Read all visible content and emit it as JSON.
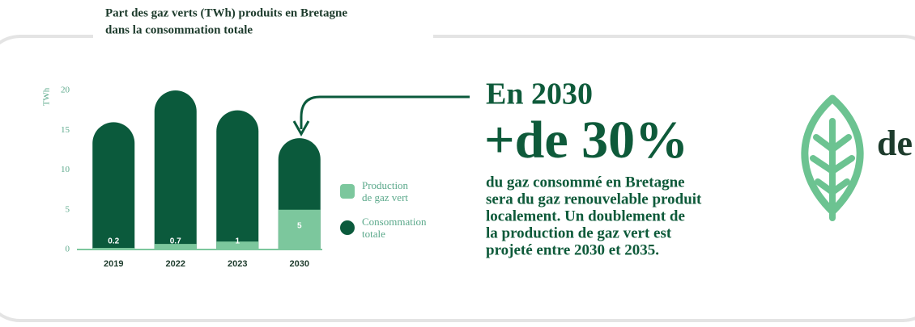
{
  "chart_data": {
    "type": "bar",
    "title": [
      "Part des gaz verts (TWh) produits en Bretagne",
      "dans la consommation totale"
    ],
    "ylabel": "TWh",
    "categories": [
      "2019",
      "2022",
      "2023",
      "2030"
    ],
    "series": [
      {
        "name": "Production de gaz vert",
        "color": "#7cc79d",
        "values": [
          0.2,
          0.7,
          1,
          5
        ]
      },
      {
        "name": "Consommation totale",
        "color": "#0b5a3c",
        "values": [
          16,
          20,
          17.5,
          14
        ]
      }
    ],
    "ylim": [
      0,
      20
    ],
    "yticks": [
      0,
      5,
      10,
      15,
      20
    ],
    "headline": "En 2030",
    "big_figure": "+de 30%",
    "paragraph": [
      "du gaz consommé en Bretagne",
      "sera du gaz renouvelable produit",
      "localement. Un doublement de",
      "la production de gaz vert est",
      "projeté entre 2030 et 2035."
    ],
    "cut_text": "de"
  }
}
